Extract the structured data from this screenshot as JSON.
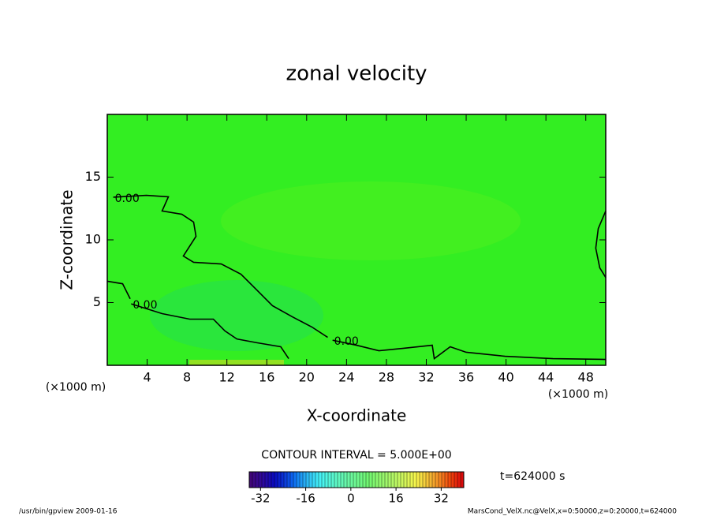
{
  "chart_data": {
    "type": "contour",
    "title": "zonal velocity",
    "x_label": "X-coordinate",
    "y_label": "Z-coordinate",
    "x_unit": "(×1000 m)",
    "y_unit": "(×1000 m)",
    "xlim": [
      0,
      50
    ],
    "ylim": [
      0,
      20
    ],
    "xticks": [
      4,
      8,
      12,
      16,
      20,
      24,
      28,
      32,
      36,
      40,
      44,
      48
    ],
    "yticks": [
      5,
      10,
      15
    ],
    "field_color": "#33ee22",
    "line_color": "#000000",
    "contours": [
      {
        "label": "0.00",
        "x": [
          0.6,
          3.92,
          6.13,
          5.5,
          7.48,
          8.66,
          8.9,
          7.63,
          8.66,
          11.43,
          13.41,
          15.0,
          16.57,
          18.55,
          20.53,
          22.11
        ],
        "y": [
          13.4,
          13.55,
          13.43,
          12.3,
          12.04,
          11.42,
          10.28,
          8.71,
          8.21,
          8.08,
          7.26,
          6.0,
          4.75,
          3.87,
          3.05,
          2.23
        ]
      },
      {
        "label": "0.00",
        "x": [
          22.6,
          25.0,
          27.25,
          29.63,
          31.2,
          32.6,
          32.8,
          34.4,
          36.0,
          39.9,
          44.7,
          50
        ],
        "y": [
          2.0,
          1.6,
          1.16,
          1.35,
          1.48,
          1.6,
          0.53,
          1.48,
          1.04,
          0.72,
          0.53,
          0.47
        ]
      },
      {
        "label": "0.00",
        "x": [
          2.4,
          5.5,
          8.27,
          10.64,
          11.8,
          13.0,
          15.0,
          17.4,
          18.2
        ],
        "y": [
          4.9,
          4.12,
          3.68,
          3.68,
          2.74,
          2.1,
          1.8,
          1.48,
          0.53
        ]
      },
      {
        "x": [
          0,
          1.54,
          2.3
        ],
        "y": [
          6.7,
          6.5,
          5.3
        ]
      },
      {
        "x": [
          50,
          49.25,
          49.0,
          49.4,
          50
        ],
        "y": [
          12.3,
          10.9,
          9.34,
          7.77,
          7.0
        ]
      }
    ],
    "contour_interval": "CONTOUR INTERVAL = 5.000E+00",
    "time_label": "t=624000 s",
    "colorbar": {
      "lim": [
        -36,
        40
      ],
      "ticks": [
        -32,
        -16,
        0,
        16,
        32
      ]
    },
    "footer_left": "/usr/bin/gpview   2009-01-16",
    "footer_right": "MarsCond_VelX.nc@VelX,x=0:50000,z=0:20000,t=624000"
  }
}
